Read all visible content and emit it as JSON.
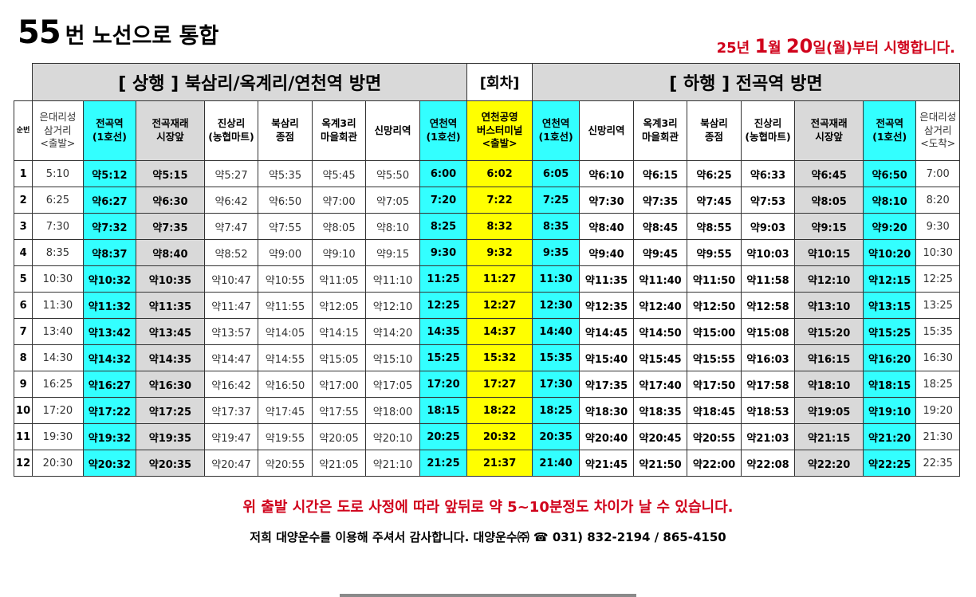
{
  "title": {
    "number": "55",
    "text": "번 노선으로 통합"
  },
  "notice": {
    "part1": "25년 ",
    "month": "1",
    "part2": "월 ",
    "day": "20",
    "part3": "일(월)부터 시행합니다."
  },
  "headers": {
    "up": "[ 상행 ] 북삼리/옥계리/연천역 방면",
    "round": "[회차]",
    "down": "[ 하행 ] 전곡역 방면"
  },
  "columns": [
    "순번",
    "은대리성\n삼거리\n<출발>",
    "전곡역\n(1호선)",
    "전곡재래\n시장앞",
    "진상리\n(농협마트)",
    "북삼리\n종점",
    "옥계3리\n마을회관",
    "신망리역",
    "연천역\n(1호선)",
    "연천공영\n버스터미널\n<출발>",
    "연천역\n(1호선)",
    "신망리역",
    "옥계3리\n마을회관",
    "북삼리\n종점",
    "진상리\n(농협마트)",
    "전곡재래\n시장앞",
    "전곡역\n(1호선)",
    "은대리성\n삼거리\n<도착>"
  ],
  "rows": [
    [
      "1",
      "5:10",
      "약5:12",
      "약5:15",
      "약5:27",
      "약5:35",
      "약5:45",
      "약5:50",
      "6:00",
      "6:02",
      "6:05",
      "약6:10",
      "약6:15",
      "약6:25",
      "약6:33",
      "약6:45",
      "약6:50",
      "7:00"
    ],
    [
      "2",
      "6:25",
      "약6:27",
      "약6:30",
      "약6:42",
      "약6:50",
      "약7:00",
      "약7:05",
      "7:20",
      "7:22",
      "7:25",
      "약7:30",
      "약7:35",
      "약7:45",
      "약7:53",
      "약8:05",
      "약8:10",
      "8:20"
    ],
    [
      "3",
      "7:30",
      "약7:32",
      "약7:35",
      "약7:47",
      "약7:55",
      "약8:05",
      "약8:10",
      "8:25",
      "8:32",
      "8:35",
      "약8:40",
      "약8:45",
      "약8:55",
      "약9:03",
      "약9:15",
      "약9:20",
      "9:30"
    ],
    [
      "4",
      "8:35",
      "약8:37",
      "약8:40",
      "약8:52",
      "약9:00",
      "약9:10",
      "약9:15",
      "9:30",
      "9:32",
      "9:35",
      "약9:40",
      "약9:45",
      "약9:55",
      "약10:03",
      "약10:15",
      "약10:20",
      "10:30"
    ],
    [
      "5",
      "10:30",
      "약10:32",
      "약10:35",
      "약10:47",
      "약10:55",
      "약11:05",
      "약11:10",
      "11:25",
      "11:27",
      "11:30",
      "약11:35",
      "약11:40",
      "약11:50",
      "약11:58",
      "약12:10",
      "약12:15",
      "12:25"
    ],
    [
      "6",
      "11:30",
      "약11:32",
      "약11:35",
      "약11:47",
      "약11:55",
      "약12:05",
      "약12:10",
      "12:25",
      "12:27",
      "12:30",
      "약12:35",
      "약12:40",
      "약12:50",
      "약12:58",
      "약13:10",
      "약13:15",
      "13:25"
    ],
    [
      "7",
      "13:40",
      "약13:42",
      "약13:45",
      "약13:57",
      "약14:05",
      "약14:15",
      "약14:20",
      "14:35",
      "14:37",
      "14:40",
      "약14:45",
      "약14:50",
      "약15:00",
      "약15:08",
      "약15:20",
      "약15:25",
      "15:35"
    ],
    [
      "8",
      "14:30",
      "약14:32",
      "약14:35",
      "약14:47",
      "약14:55",
      "약15:05",
      "약15:10",
      "15:25",
      "15:32",
      "15:35",
      "약15:40",
      "약15:45",
      "약15:55",
      "약16:03",
      "약16:15",
      "약16:20",
      "16:30"
    ],
    [
      "9",
      "16:25",
      "약16:27",
      "약16:30",
      "약16:42",
      "약16:50",
      "약17:00",
      "약17:05",
      "17:20",
      "17:27",
      "17:30",
      "약17:35",
      "약17:40",
      "약17:50",
      "약17:58",
      "약18:10",
      "약18:15",
      "18:25"
    ],
    [
      "10",
      "17:20",
      "약17:22",
      "약17:25",
      "약17:37",
      "약17:45",
      "약17:55",
      "약18:00",
      "18:15",
      "18:22",
      "18:25",
      "약18:30",
      "약18:35",
      "약18:45",
      "약18:53",
      "약19:05",
      "약19:10",
      "19:20"
    ],
    [
      "11",
      "19:30",
      "약19:32",
      "약19:35",
      "약19:47",
      "약19:55",
      "약20:05",
      "약20:10",
      "20:25",
      "20:32",
      "20:35",
      "약20:40",
      "약20:45",
      "약20:55",
      "약21:03",
      "약21:15",
      "약21:20",
      "21:30"
    ],
    [
      "12",
      "20:30",
      "약20:32",
      "약20:35",
      "약20:47",
      "약20:55",
      "약21:05",
      "약21:10",
      "21:25",
      "21:37",
      "21:40",
      "약21:45",
      "약21:50",
      "약22:00",
      "약22:08",
      "약22:20",
      "약22:25",
      "22:35"
    ]
  ],
  "footer": {
    "warning": "위 출발 시간은 도로 사정에 따라 앞뒤로 약 5~10분정도 차이가 날 수 있습니다.",
    "thanks": "저희 대양운수를 이용해 주셔서 감사합니다.  대양운수㈜ ☎ 031) 832-2194 / 865-4150"
  },
  "colors": {
    "cyan": "#33ffff",
    "gray": "#d9d9d9",
    "yellow": "#ffff00",
    "red": "#d0021b"
  }
}
